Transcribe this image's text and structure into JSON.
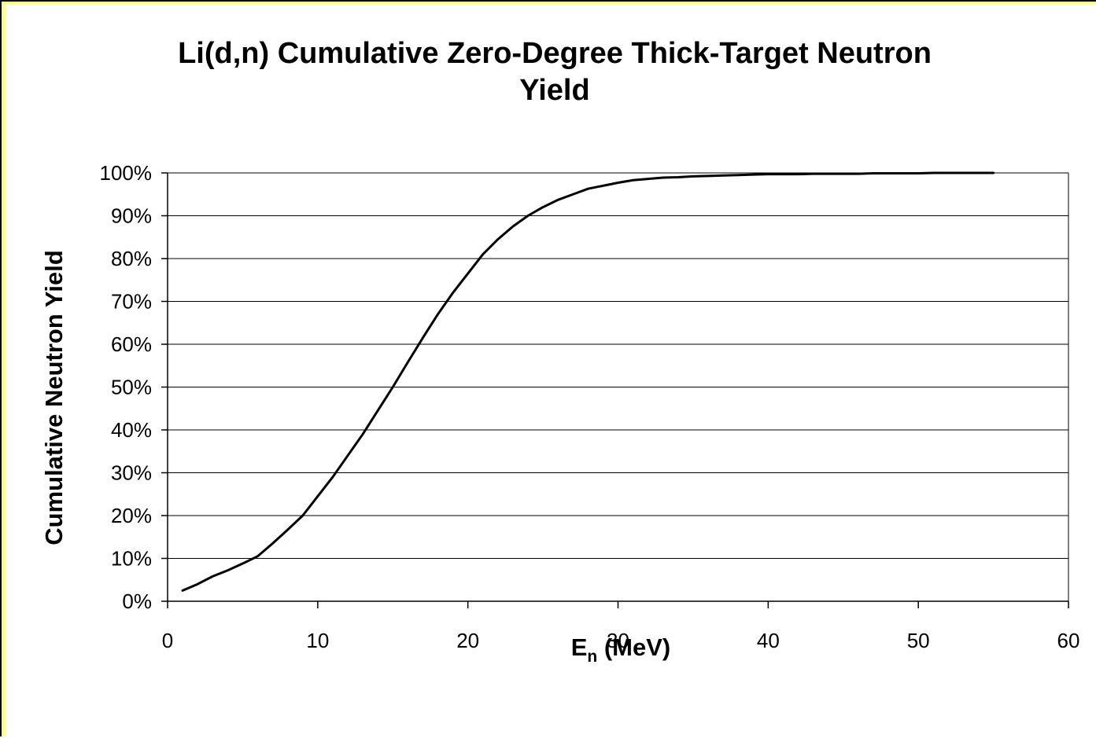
{
  "colors": {
    "frame_background": "#ffff99",
    "plot_background": "#ffffff",
    "line": "#000000",
    "gridline": "#000000"
  },
  "chart_data": {
    "type": "line",
    "title": "Li(d,n) Cumulative Zero-Degree Thick-Target Neutron Yield",
    "title_lines": [
      "Li(d,n) Cumulative Zero-Degree Thick-Target Neutron",
      "Yield"
    ],
    "xlabel": "En (MeV)",
    "xlabel_main": "E",
    "xlabel_sub": "n",
    "xlabel_rest": " (MeV)",
    "ylabel": "Cumulative Neutron Yield",
    "xlim": [
      0,
      60
    ],
    "ylim": [
      0,
      100
    ],
    "x_ticks": [
      0,
      10,
      20,
      30,
      40,
      50,
      60
    ],
    "x_tick_labels": [
      "0",
      "10",
      "20",
      "30",
      "40",
      "50",
      "60"
    ],
    "y_ticks": [
      0,
      10,
      20,
      30,
      40,
      50,
      60,
      70,
      80,
      90,
      100
    ],
    "y_tick_labels": [
      "0%",
      "10%",
      "20%",
      "30%",
      "40%",
      "50%",
      "60%",
      "70%",
      "80%",
      "90%",
      "100%"
    ],
    "grid": "horizontal",
    "legend": "none",
    "series": [
      {
        "x": [
          1,
          2,
          3,
          4,
          5,
          6,
          7,
          8,
          9,
          10,
          11,
          12,
          13,
          14,
          15,
          16,
          17,
          18,
          19,
          20,
          21,
          22,
          23,
          24,
          25,
          26,
          27,
          28,
          29,
          30,
          31,
          32,
          33,
          34,
          35,
          36,
          37,
          38,
          39,
          40,
          41,
          42,
          43,
          44,
          45,
          46,
          47,
          48,
          49,
          50,
          51,
          52,
          53,
          54,
          55
        ],
        "y": [
          2.5,
          4.0,
          5.8,
          7.2,
          8.8,
          10.5,
          13.5,
          16.7,
          20.0,
          24.5,
          29.0,
          34.0,
          39.0,
          44.5,
          50.0,
          55.8,
          61.5,
          67.0,
          72.0,
          76.5,
          81.0,
          84.5,
          87.5,
          90.0,
          92.0,
          93.7,
          95.0,
          96.3,
          97.0,
          97.7,
          98.3,
          98.6,
          98.9,
          99.0,
          99.2,
          99.3,
          99.4,
          99.5,
          99.6,
          99.7,
          99.7,
          99.7,
          99.8,
          99.8,
          99.8,
          99.8,
          99.9,
          99.9,
          99.9,
          99.9,
          100.0,
          100.0,
          100.0,
          100.0,
          100.0
        ]
      }
    ]
  }
}
